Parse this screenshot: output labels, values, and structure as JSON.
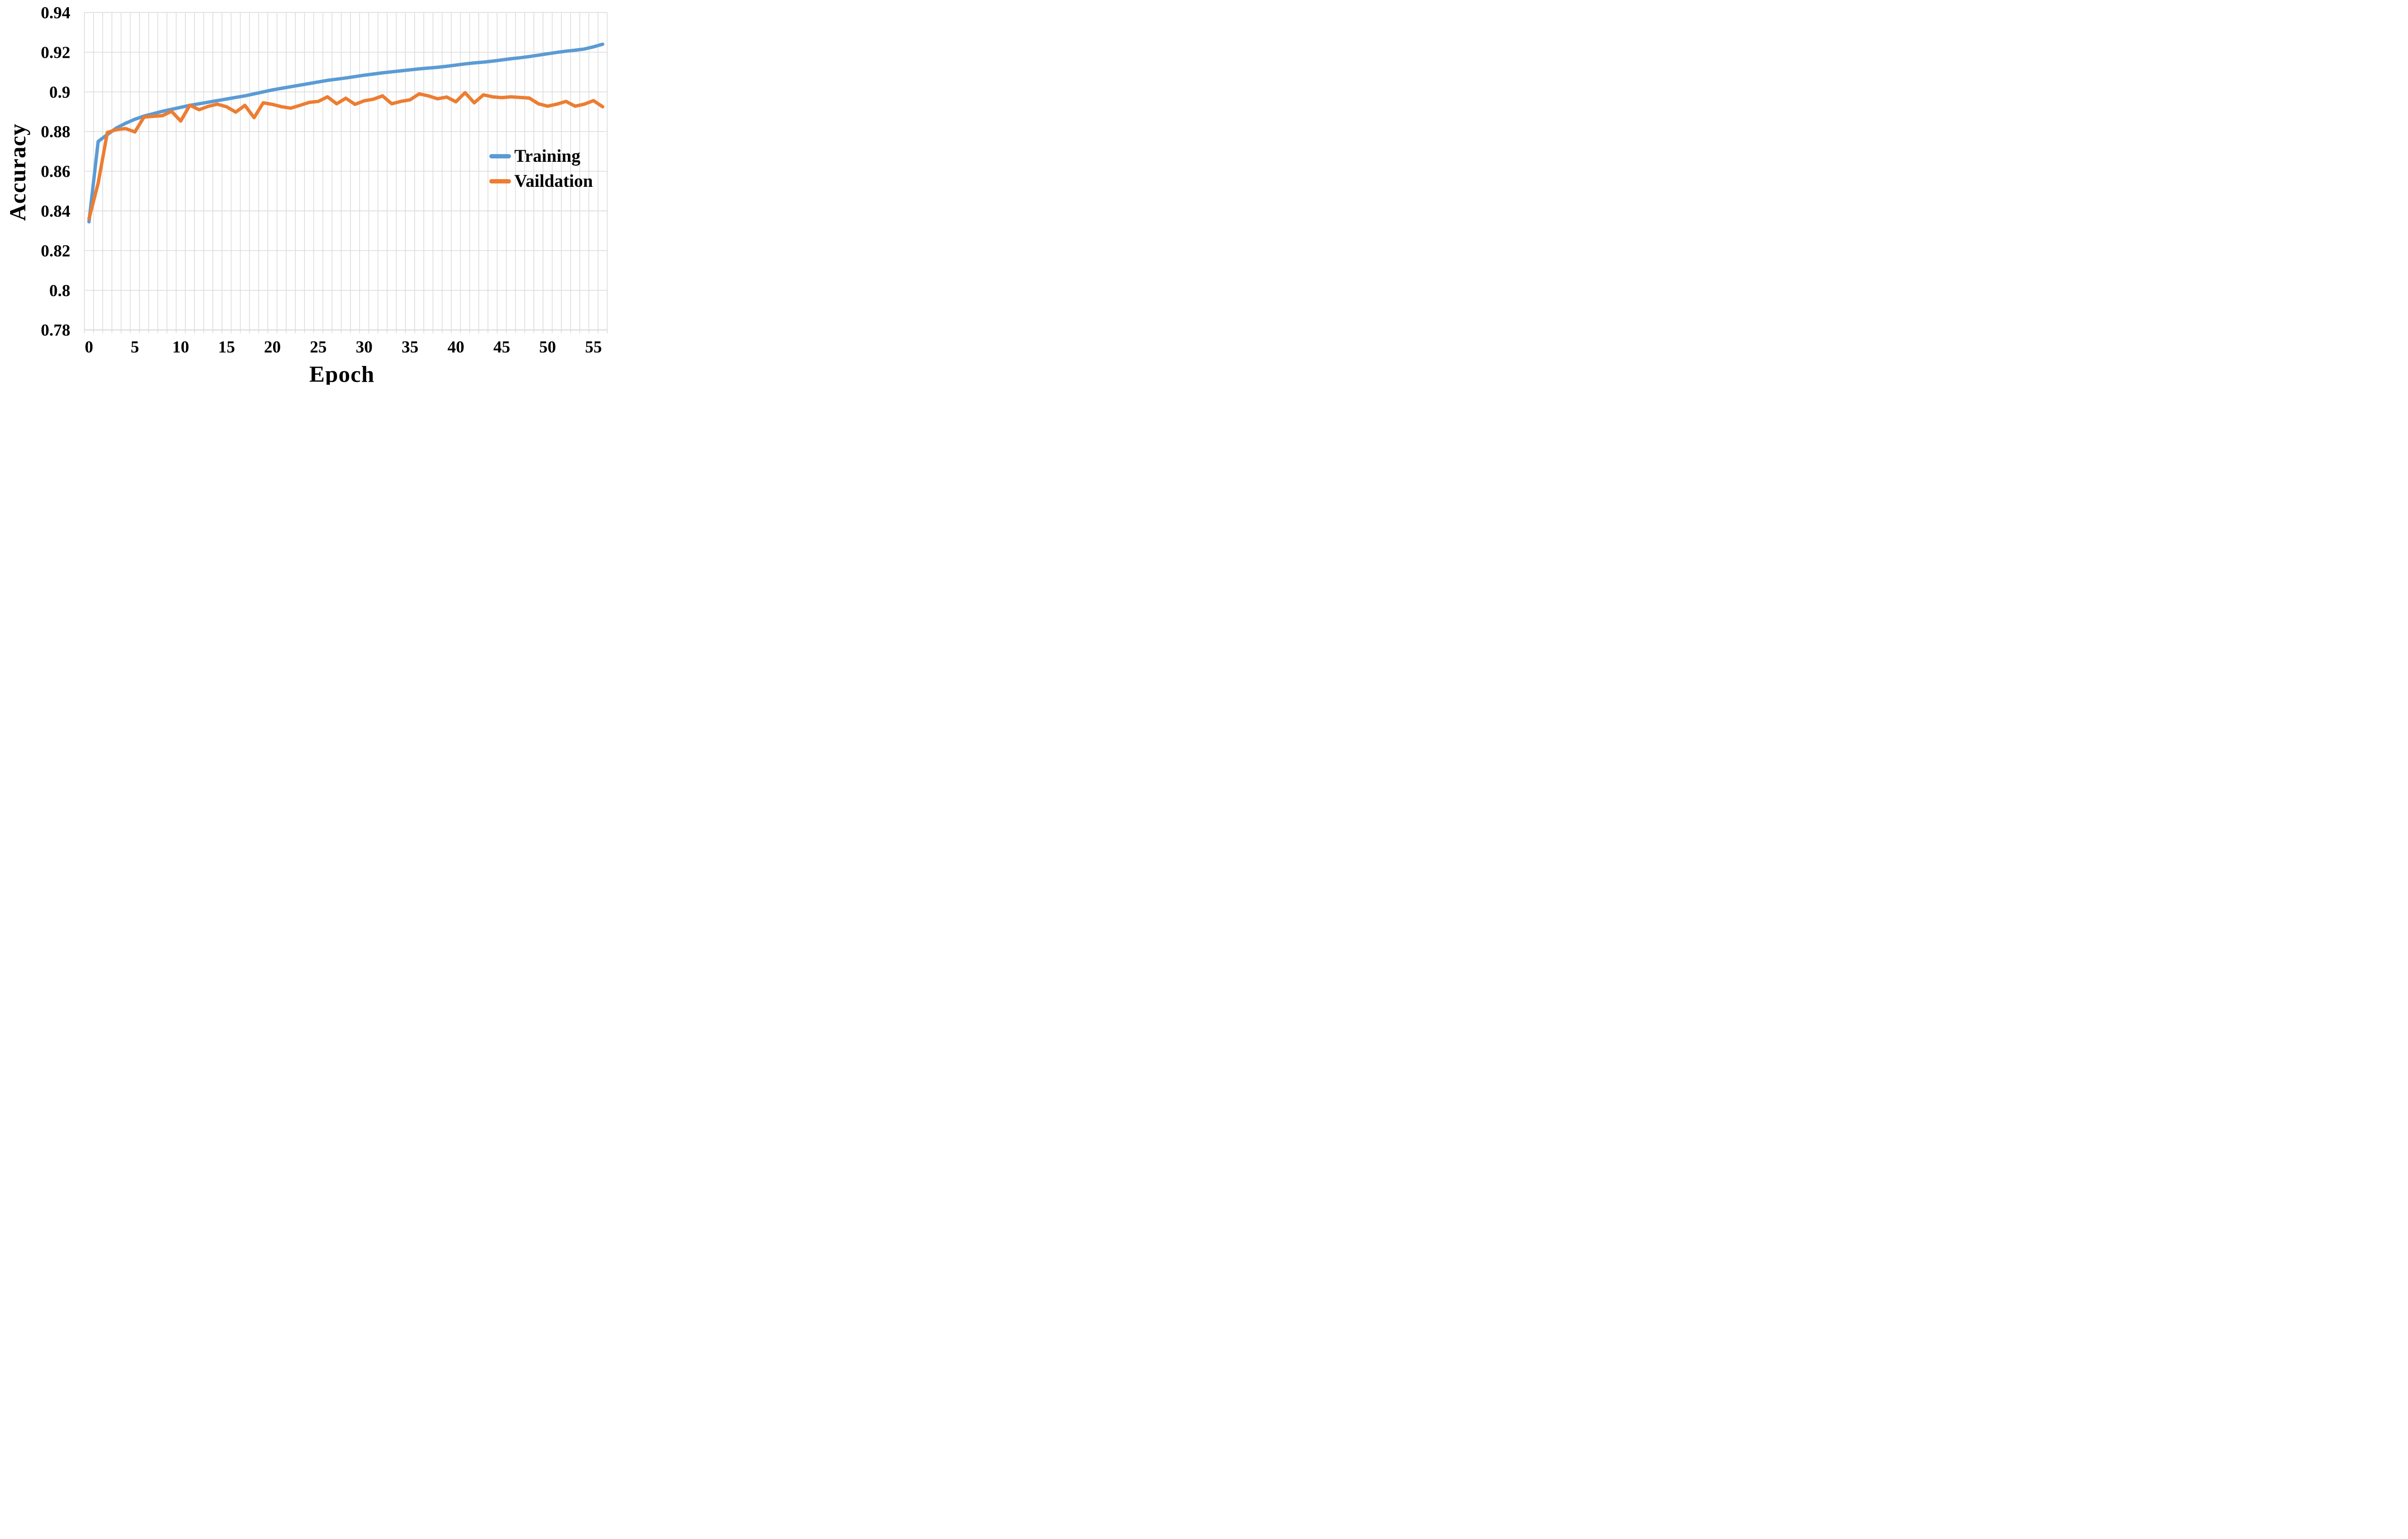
{
  "axes": {
    "x_title": "Epoch",
    "y_title": "Accuracy"
  },
  "legend": {
    "items": [
      {
        "label": "Training",
        "color": "#5B9BD5"
      },
      {
        "label": "Vaildation",
        "color": "#ED7D31"
      }
    ]
  },
  "colors": {
    "gridline": "#D9D9D9",
    "axis_line": "#D3D3D3",
    "text": "#000000",
    "background": "#FFFFFF",
    "training": "#5B9BD5",
    "validation": "#ED7D31"
  },
  "chart_data": {
    "type": "line",
    "title": "",
    "xlabel": "Epoch",
    "ylabel": "Accuracy",
    "xlim": [
      0,
      57
    ],
    "ylim": [
      0.78,
      0.94
    ],
    "y_tick_step": 0.02,
    "x_tick_step": 5,
    "grid": "vertical every 1 epoch, horizontal every 0.02",
    "legend_position": "inside right",
    "x_ticks": [
      "0",
      "5",
      "10",
      "15",
      "20",
      "25",
      "30",
      "35",
      "40",
      "45",
      "50",
      "55"
    ],
    "y_ticks": [
      "0.94",
      "0.92",
      "0.9",
      "0.88",
      "0.86",
      "0.84",
      "0.82",
      "0.8",
      "0.78"
    ],
    "x": [
      0,
      1,
      2,
      3,
      4,
      5,
      6,
      7,
      8,
      9,
      10,
      11,
      12,
      13,
      14,
      15,
      16,
      17,
      18,
      19,
      20,
      21,
      22,
      23,
      24,
      25,
      26,
      27,
      28,
      29,
      30,
      31,
      32,
      33,
      34,
      35,
      36,
      37,
      38,
      39,
      40,
      41,
      42,
      43,
      44,
      45,
      46,
      47,
      48,
      49,
      50,
      51,
      52,
      53,
      54,
      55,
      56
    ],
    "series": [
      {
        "name": "Training",
        "color": "#5B9BD5",
        "values": [
          0.8345,
          0.875,
          0.8785,
          0.8818,
          0.8842,
          0.8862,
          0.8878,
          0.889,
          0.8902,
          0.8912,
          0.8922,
          0.8932,
          0.894,
          0.8948,
          0.8956,
          0.8964,
          0.8972,
          0.898,
          0.899,
          0.9,
          0.901,
          0.9018,
          0.9026,
          0.9034,
          0.9042,
          0.905,
          0.9058,
          0.9064,
          0.907,
          0.9077,
          0.9084,
          0.909,
          0.9096,
          0.9101,
          0.9106,
          0.9111,
          0.9116,
          0.912,
          0.9124,
          0.9129,
          0.9135,
          0.9141,
          0.9146,
          0.915,
          0.9155,
          0.9161,
          0.9167,
          0.9172,
          0.9178,
          0.9185,
          0.9192,
          0.9199,
          0.9205,
          0.921,
          0.9216,
          0.9227,
          0.924
        ]
      },
      {
        "name": "Vaildation",
        "color": "#ED7D31",
        "values": [
          0.836,
          0.854,
          0.8795,
          0.881,
          0.8815,
          0.8798,
          0.8873,
          0.8877,
          0.888,
          0.8902,
          0.8853,
          0.8933,
          0.891,
          0.8927,
          0.8938,
          0.8925,
          0.8898,
          0.8932,
          0.887,
          0.8945,
          0.8937,
          0.8925,
          0.8918,
          0.8932,
          0.8947,
          0.8952,
          0.8975,
          0.894,
          0.8968,
          0.8937,
          0.8955,
          0.8963,
          0.898,
          0.894,
          0.8952,
          0.896,
          0.899,
          0.898,
          0.8965,
          0.8974,
          0.895,
          0.8996,
          0.8945,
          0.8985,
          0.8975,
          0.8971,
          0.8975,
          0.8972,
          0.8969,
          0.894,
          0.8928,
          0.8938,
          0.8952,
          0.8928,
          0.8938,
          0.8956,
          0.8925
        ]
      }
    ]
  }
}
